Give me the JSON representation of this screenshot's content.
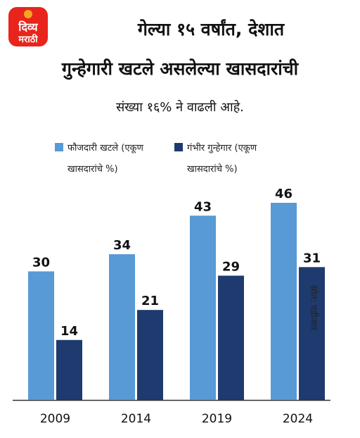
{
  "logo": {
    "line1": "दिव्य",
    "line2": "मराठी"
  },
  "title": {
    "line1": "गेल्या १५ वर्षांत, देशात",
    "line2": "गुन्हेगारी खटले असलेल्या खासदारांची",
    "line3": "संख्या १६% ने वाढली आहे."
  },
  "legend": [
    {
      "line1": "फौजदारी खटले (एकूण",
      "line2": "खासदारांचे %)"
    },
    {
      "line1": "गंभीर गुन्हेगार (एकूण",
      "line2": "खासदारांचे %)"
    }
  ],
  "source": "स्रोत: एडीआर",
  "colors": {
    "series1": "#579ad6",
    "series2": "#1f3a6e",
    "axis": "#333333"
  },
  "chart_data": {
    "type": "bar",
    "categories": [
      "2009",
      "2014",
      "2019",
      "2024"
    ],
    "series": [
      {
        "name": "फौजदारी खटले (एकूण खासदारांचे %)",
        "values": [
          30,
          34,
          43,
          46
        ]
      },
      {
        "name": "गंभीर गुन्हेगार (एकूण खासदारांचे %)",
        "values": [
          14,
          21,
          29,
          31
        ]
      }
    ],
    "ylim": [
      0,
      46
    ],
    "legend_position": "top",
    "grid": false
  }
}
